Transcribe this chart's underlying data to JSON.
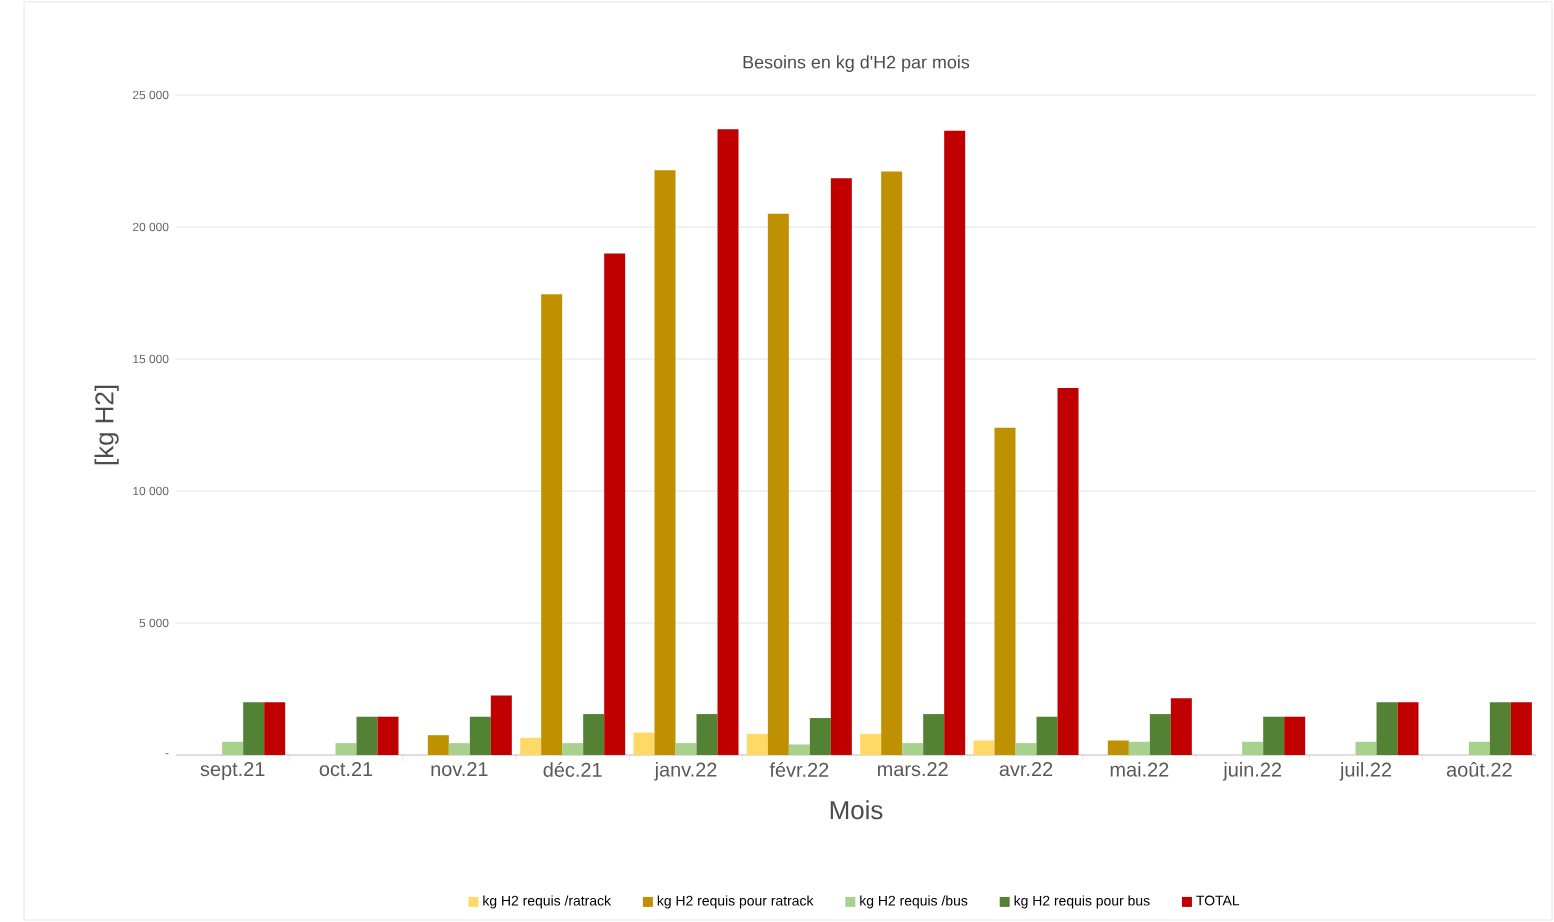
{
  "chart_data": {
    "type": "bar",
    "title": "Besoins en kg d'H2 par mois",
    "xlabel": "Mois",
    "ylabel": "[kg H2]",
    "categories": [
      "sept.21",
      "oct.21",
      "nov.21",
      "déc.21",
      "janv.22",
      "févr.22",
      "mars.22",
      "avr.22",
      "mai.22",
      "juin.22",
      "juil.22",
      "août.22"
    ],
    "series": [
      {
        "name": "kg H2 requis /ratrack",
        "color": "#ffd966",
        "values": [
          0,
          0,
          0,
          650,
          850,
          800,
          800,
          550,
          0,
          0,
          0,
          0
        ]
      },
      {
        "name": "kg H2 requis pour ratrack",
        "color": "#bf9000",
        "values": [
          0,
          0,
          750,
          17450,
          22150,
          20500,
          22100,
          12400,
          550,
          0,
          0,
          0
        ]
      },
      {
        "name": "kg H2 requis /bus",
        "color": "#a9d18e",
        "values": [
          500,
          450,
          450,
          450,
          450,
          400,
          450,
          450,
          500,
          500,
          500,
          500
        ]
      },
      {
        "name": "kg H2 requis pour bus",
        "color": "#548235",
        "values": [
          2000,
          1450,
          1450,
          1550,
          1550,
          1400,
          1550,
          1450,
          1550,
          1450,
          2000,
          2000
        ]
      },
      {
        "name": "TOTAL",
        "color": "#c00000",
        "values": [
          2000,
          1450,
          2250,
          19000,
          23700,
          21850,
          23650,
          13900,
          2150,
          1450,
          2000,
          2000
        ]
      }
    ],
    "ylim": [
      0,
      25000
    ],
    "yticks": [
      {
        "value": 0,
        "label": "-"
      },
      {
        "value": 5000,
        "label": "5 000"
      },
      {
        "value": 10000,
        "label": "10 000"
      },
      {
        "value": 15000,
        "label": "15 000"
      },
      {
        "value": 20000,
        "label": "20 000"
      },
      {
        "value": 25000,
        "label": "25 000"
      }
    ],
    "grid": "y",
    "legend": "bottom"
  }
}
